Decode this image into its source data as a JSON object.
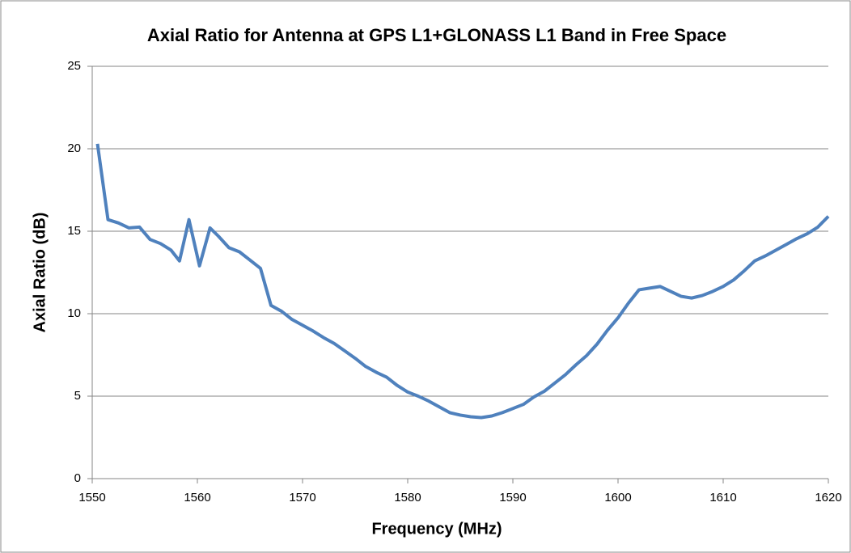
{
  "chart_data": {
    "type": "line",
    "title": "Axial Ratio for Antenna at GPS L1+GLONASS L1 Band in Free Space",
    "xlabel": "Frequency  (MHz)",
    "ylabel": "Axial Ratio (dB)",
    "x": [
      1550.5,
      1551.5,
      1552.5,
      1553.5,
      1554.5,
      1555.5,
      1556.5,
      1557.5,
      1558.3,
      1559.2,
      1560.2,
      1561.2,
      1562,
      1563,
      1564,
      1565,
      1566,
      1567,
      1568,
      1569,
      1570,
      1571,
      1572,
      1573,
      1574,
      1575,
      1576,
      1577,
      1578,
      1579,
      1580,
      1581,
      1582,
      1583,
      1584,
      1585,
      1586,
      1587,
      1588,
      1589,
      1590,
      1591,
      1592,
      1593,
      1594,
      1595,
      1596,
      1597,
      1598,
      1599,
      1600,
      1601,
      1602,
      1603,
      1604,
      1605,
      1606,
      1607,
      1608,
      1609,
      1610,
      1611,
      1612,
      1613,
      1614,
      1615,
      1616,
      1617,
      1618,
      1619,
      1620
    ],
    "series": [
      {
        "name": "Axial Ratio",
        "color": "#4f81bd",
        "values": [
          20.3,
          15.7,
          15.5,
          15.2,
          15.25,
          14.5,
          14.25,
          13.85,
          13.2,
          15.7,
          12.9,
          15.2,
          14.7,
          14.0,
          13.75,
          13.25,
          12.75,
          10.5,
          10.15,
          9.65,
          9.3,
          8.95,
          8.55,
          8.2,
          7.75,
          7.3,
          6.8,
          6.45,
          6.15,
          5.65,
          5.25,
          5.0,
          4.7,
          4.35,
          4.0,
          3.85,
          3.75,
          3.7,
          3.8,
          4.0,
          4.25,
          4.5,
          4.95,
          5.3,
          5.8,
          6.3,
          6.9,
          7.45,
          8.15,
          9.0,
          9.75,
          10.65,
          11.45,
          11.55,
          11.65,
          11.35,
          11.05,
          10.95,
          11.1,
          11.35,
          11.65,
          12.05,
          12.6,
          13.2,
          13.5,
          13.85,
          14.2,
          14.55,
          14.85,
          15.25,
          15.9
        ]
      }
    ],
    "xlim": [
      1550,
      1620
    ],
    "xticks": [
      1550,
      1560,
      1570,
      1580,
      1590,
      1600,
      1610,
      1620
    ],
    "ylim": [
      0,
      25
    ],
    "yticks": [
      0,
      5,
      10,
      15,
      20,
      25
    ],
    "grid": true
  }
}
